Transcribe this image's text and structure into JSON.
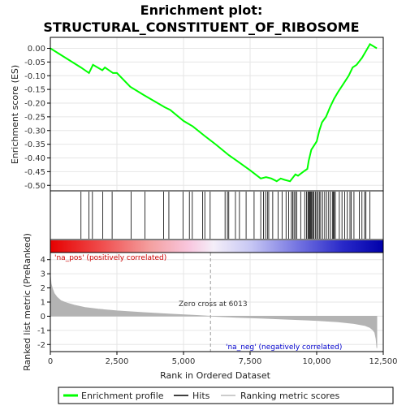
{
  "chart_data": {
    "type": "line",
    "title_line1": "Enrichment plot:",
    "title_line2": "STRUCTURAL_CONSTITUENT_OF_RIBOSOME",
    "ylabel_top": "Enrichment score (ES)",
    "ylabel_bottom": "Ranked list metric (PreRanked)",
    "xlabel": "Rank in Ordered Dataset",
    "xlim": [
      0,
      12500
    ],
    "x_ticks": [
      0,
      2500,
      5000,
      7500,
      10000,
      12500
    ],
    "x_tick_labels": [
      "0",
      "2,500",
      "5,000",
      "7,500",
      "10,000",
      "12,500"
    ],
    "es_ylim": [
      -0.52,
      0.04
    ],
    "es_ticks": [
      0.0,
      -0.05,
      -0.1,
      -0.15,
      -0.2,
      -0.25,
      -0.3,
      -0.35,
      -0.4,
      -0.45,
      -0.5
    ],
    "es_tick_labels": [
      "0.00",
      "-0.05",
      "-0.10",
      "-0.15",
      "-0.20",
      "-0.25",
      "-0.30",
      "-0.35",
      "-0.40",
      "-0.45",
      "-0.50"
    ],
    "metric_ylim": [
      -2.5,
      4.5
    ],
    "metric_ticks": [
      4,
      3,
      2,
      1,
      0,
      -1,
      -2
    ],
    "metric_tick_labels": [
      "4",
      "3",
      "2",
      "1",
      "0",
      "-1",
      "-2"
    ],
    "zero_cross": 6013,
    "zero_cross_label": "Zero cross at 6013",
    "pos_label": "'na_pos' (positively correlated)",
    "neg_label": "'na_neg' (negatively correlated)",
    "n_genes": 12260,
    "es_curve": {
      "x": [
        0,
        1150,
        1450,
        1600,
        1950,
        2050,
        2350,
        2500,
        3000,
        3500,
        4300,
        4500,
        5000,
        5350,
        5800,
        6200,
        6700,
        7000,
        7500,
        7900,
        8100,
        8300,
        8500,
        8650,
        8800,
        9000,
        9200,
        9300,
        9500,
        9650,
        9700,
        9800,
        9900,
        10000,
        10100,
        10200,
        10350,
        10500,
        10650,
        10800,
        11000,
        11200,
        11350,
        11500,
        11700,
        11850,
        12000,
        12260
      ],
      "y": [
        0.0,
        -0.07,
        -0.09,
        -0.06,
        -0.08,
        -0.07,
        -0.09,
        -0.09,
        -0.14,
        -0.17,
        -0.215,
        -0.225,
        -0.265,
        -0.285,
        -0.32,
        -0.35,
        -0.39,
        -0.41,
        -0.445,
        -0.475,
        -0.47,
        -0.475,
        -0.485,
        -0.475,
        -0.48,
        -0.485,
        -0.46,
        -0.465,
        -0.45,
        -0.44,
        -0.41,
        -0.37,
        -0.355,
        -0.34,
        -0.3,
        -0.27,
        -0.25,
        -0.215,
        -0.185,
        -0.16,
        -0.13,
        -0.1,
        -0.07,
        -0.06,
        -0.035,
        -0.01,
        0.015,
        0.0
      ]
    },
    "hits": [
      1150,
      1450,
      1580,
      1970,
      2320,
      3030,
      3550,
      4250,
      4450,
      4980,
      5220,
      5330,
      5720,
      5800,
      6000,
      6560,
      6650,
      6700,
      6950,
      7100,
      7350,
      7650,
      7900,
      8000,
      8080,
      8150,
      8200,
      8350,
      8550,
      8700,
      8850,
      8950,
      9050,
      9100,
      9150,
      9200,
      9250,
      9400,
      9550,
      9620,
      9670,
      9700,
      9730,
      9760,
      9790,
      9820,
      9860,
      9900,
      9950,
      10000,
      10050,
      10100,
      10150,
      10220,
      10300,
      10370,
      10450,
      10520,
      10600,
      10630,
      10660,
      10700,
      10850,
      10950,
      11050,
      11150,
      11250,
      11300,
      11400,
      11600,
      11700,
      11800,
      11850,
      12000
    ],
    "metric_curve": {
      "x": [
        0,
        30,
        80,
        150,
        250,
        400,
        600,
        900,
        1300,
        1800,
        2500,
        3500,
        4500,
        5500,
        6013,
        7000,
        8000,
        9000,
        10000,
        10800,
        11400,
        11800,
        12000,
        12100,
        12180,
        12230,
        12260
      ],
      "y": [
        2.9,
        2.3,
        1.95,
        1.6,
        1.35,
        1.1,
        0.95,
        0.78,
        0.62,
        0.5,
        0.38,
        0.26,
        0.15,
        0.06,
        0.0,
        -0.08,
        -0.15,
        -0.22,
        -0.3,
        -0.4,
        -0.52,
        -0.65,
        -0.8,
        -0.95,
        -1.15,
        -1.6,
        -2.25
      ]
    },
    "legend": [
      "Enrichment profile",
      "Hits",
      "Ranking metric scores"
    ],
    "colors": {
      "es_line": "#00ff00",
      "hit_line": "#000000",
      "metric_fill": "#b3b3b3",
      "pos_text": "#cc0000",
      "neg_text": "#0000cc",
      "zero_text": "#333333",
      "border": "#000000",
      "grid": "#e6e6e6"
    }
  }
}
